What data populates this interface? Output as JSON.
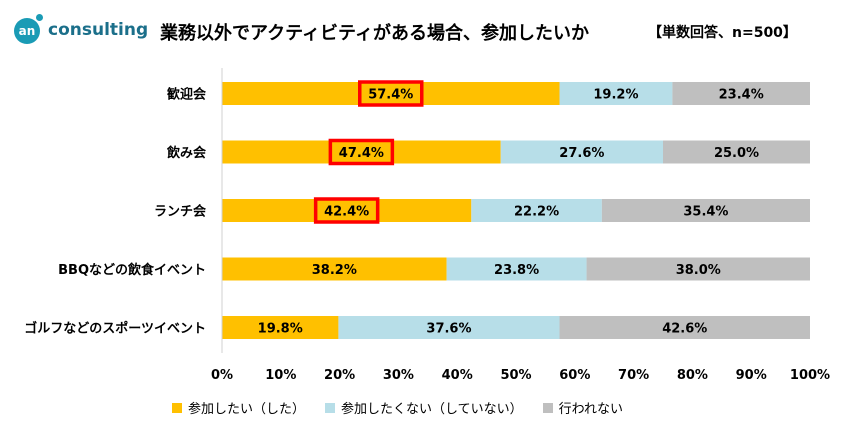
{
  "logo": {
    "mark": "an",
    "text": "consulting"
  },
  "title": "業務以外でアクティビティがある場合、参加したいか",
  "note": "【単数回答、n=500】",
  "colors": {
    "yes": "#FFC000",
    "no": "#B7DEE8",
    "none": "#BFBFBF",
    "highlight": "#FF0000"
  },
  "chart_data": {
    "type": "bar",
    "orientation": "horizontal",
    "stacked": true,
    "percent_stacked": true,
    "categories": [
      "歓迎会",
      "飲み会",
      "ランチ会",
      "BBQなどの飲食イベント",
      "ゴルフなどのスポーツイベント"
    ],
    "series": [
      {
        "name": "参加したい（した）",
        "values": [
          57.4,
          47.4,
          42.4,
          38.2,
          19.8
        ],
        "labels": [
          "57.4%",
          "47.4%",
          "42.4%",
          "38.2%",
          "19.8%"
        ]
      },
      {
        "name": "参加したくない（していない）",
        "values": [
          19.2,
          27.6,
          22.2,
          23.8,
          37.6
        ],
        "labels": [
          "19.2%",
          "27.6%",
          "22.2%",
          "23.8%",
          "37.6%"
        ]
      },
      {
        "name": "行われない",
        "values": [
          23.4,
          25.0,
          35.4,
          38.0,
          42.6
        ],
        "labels": [
          "23.4%",
          "25.0%",
          "35.4%",
          "38.0%",
          "42.6%"
        ]
      }
    ],
    "highlighted_categories": [
      "歓迎会",
      "飲み会",
      "ランチ会"
    ],
    "xlim": [
      0,
      100
    ],
    "xticks": [
      "0%",
      "10%",
      "20%",
      "30%",
      "40%",
      "50%",
      "60%",
      "70%",
      "80%",
      "90%",
      "100%"
    ],
    "grid": false,
    "legend_position": "bottom"
  }
}
